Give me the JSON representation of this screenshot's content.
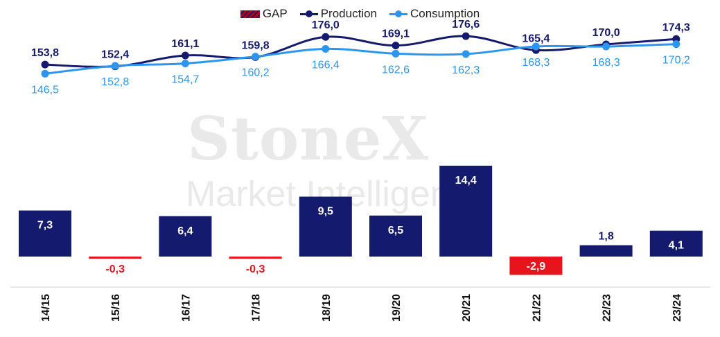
{
  "legend": {
    "gap": "GAP",
    "production": "Production",
    "consumption": "Consumption"
  },
  "watermark": {
    "brand": "StoneX",
    "tagline": "Market Intelligence"
  },
  "colors": {
    "production": "#151a6e",
    "consumption": "#2b96f0",
    "gap_positive": "#141a6e",
    "gap_negative": "#e8141c",
    "axis": "#d0d0d0"
  },
  "chart_data": {
    "type": "bar",
    "categories": [
      "14/15",
      "15/16",
      "16/17",
      "17/18",
      "18/19",
      "19/20",
      "20/21",
      "21/22",
      "22/23",
      "23/24"
    ],
    "series": [
      {
        "name": "GAP",
        "type": "bar",
        "values": [
          7.3,
          -0.3,
          6.4,
          -0.3,
          9.5,
          6.5,
          14.4,
          -2.9,
          1.8,
          4.1
        ],
        "labels": [
          "7,3",
          "-0,3",
          "6,4",
          "-0,3",
          "9,5",
          "6,5",
          "14,4",
          "-2,9",
          "1,8",
          "4,1"
        ]
      },
      {
        "name": "Production",
        "type": "line",
        "values": [
          153.8,
          152.4,
          161.1,
          159.8,
          176.0,
          169.1,
          176.6,
          165.4,
          170.0,
          174.3
        ],
        "labels": [
          "153,8",
          "152,4",
          "161,1",
          "159,8",
          "176,0",
          "169,1",
          "176,6",
          "165,4",
          "170,0",
          "174,3"
        ]
      },
      {
        "name": "Consumption",
        "type": "line",
        "values": [
          146.5,
          152.8,
          154.7,
          160.2,
          166.4,
          162.6,
          162.3,
          168.3,
          168.3,
          170.2
        ],
        "labels": [
          "146,5",
          "152,8",
          "154,7",
          "160,2",
          "166,4",
          "162,6",
          "162,3",
          "168,3",
          "168,3",
          "170,2"
        ]
      }
    ],
    "legend_position": "top-center",
    "grid": false
  }
}
